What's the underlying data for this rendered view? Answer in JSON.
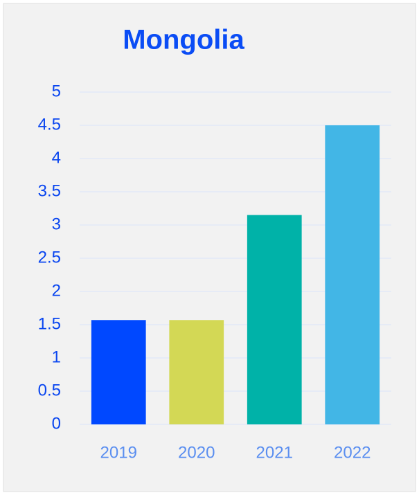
{
  "chart_data": {
    "type": "bar",
    "title": "Mongolia",
    "categories": [
      "2019",
      "2020",
      "2021",
      "2022"
    ],
    "values": [
      1.57,
      1.57,
      3.15,
      4.5
    ],
    "colors": [
      "#0048ff",
      "#d3d855",
      "#00b2a8",
      "#42b6e6"
    ],
    "ylim": [
      0,
      5
    ],
    "yticks": [
      0,
      0.5,
      1,
      1.5,
      2,
      2.5,
      3,
      3.5,
      4,
      4.5,
      5
    ],
    "grid": true
  }
}
